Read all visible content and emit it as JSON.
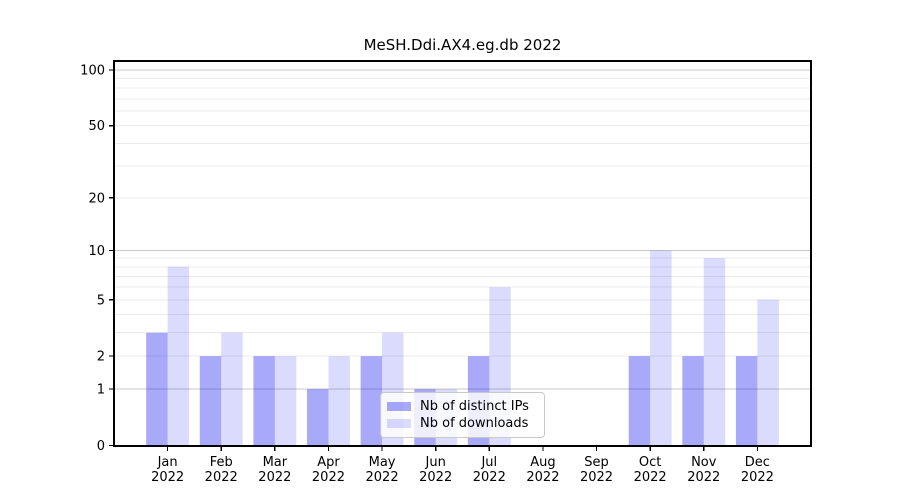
{
  "chart_data": {
    "type": "bar",
    "title": "MeSH.Ddi.AX4.eg.db 2022",
    "categories": [
      "Jan 2022",
      "Feb 2022",
      "Mar 2022",
      "Apr 2022",
      "May 2022",
      "Jun 2022",
      "Jul 2022",
      "Aug 2022",
      "Sep 2022",
      "Oct 2022",
      "Nov 2022",
      "Dec 2022"
    ],
    "x_months": [
      "Jan",
      "Feb",
      "Mar",
      "Apr",
      "May",
      "Jun",
      "Jul",
      "Aug",
      "Sep",
      "Oct",
      "Nov",
      "Dec"
    ],
    "x_year": "2022",
    "series": [
      {
        "name": "Nb of distinct IPs",
        "color": "rgba(10,10,240,0.35)",
        "hex": "#a9a9f9",
        "values": [
          3,
          2,
          2,
          1,
          2,
          1,
          2,
          0,
          0,
          2,
          2,
          2
        ]
      },
      {
        "name": "Nb of downloads",
        "color": "rgba(10,10,240,0.145)",
        "hex": "#dcdcf9",
        "values": [
          8,
          3,
          2,
          2,
          3,
          1,
          6,
          0,
          0,
          10,
          9,
          5
        ]
      }
    ],
    "yscale": "log10(1+y)",
    "ylim": [
      0,
      112
    ],
    "y_ticks": [
      0,
      1,
      2,
      5,
      10,
      20,
      50,
      100
    ],
    "y_major_grid": [
      1,
      10,
      100
    ],
    "y_minor_grid": [
      2,
      3,
      4,
      5,
      6,
      7,
      8,
      9,
      20,
      30,
      40,
      50,
      60,
      70,
      80,
      90
    ],
    "grid": "horizontal",
    "legend_position": "lower center",
    "colors": {
      "axis": "#000000",
      "text": "#000000",
      "major_grid": "#c8c8c8",
      "minor_grid": "#ebebeb",
      "background": "#ffffff"
    }
  }
}
